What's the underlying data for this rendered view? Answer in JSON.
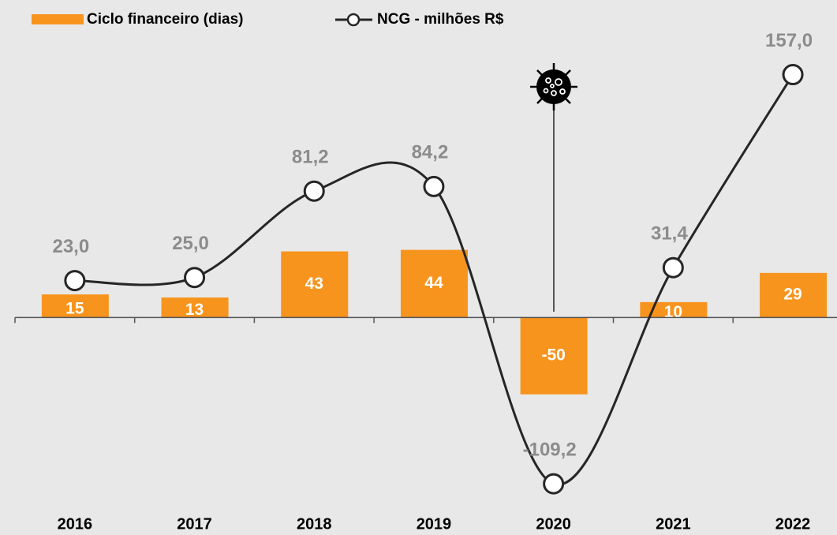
{
  "chart_data": {
    "type": "bar",
    "categories": [
      "2016",
      "2017",
      "2018",
      "2019",
      "2020",
      "2021",
      "2022"
    ],
    "series": [
      {
        "name": "Ciclo financeiro (dias)",
        "type": "bar",
        "color": "#f7941d",
        "values": [
          15,
          13,
          43,
          44,
          -50,
          10,
          29
        ]
      },
      {
        "name": "NCG - milhões R$",
        "type": "line",
        "axis": "y2",
        "color": "#262626",
        "values": [
          23.0,
          25.0,
          81.2,
          84.2,
          -109.2,
          31.4,
          157.0
        ],
        "value_labels": [
          "23,0",
          "25,0",
          "81,2",
          "84,2",
          "-109,2",
          "31,4",
          "157,0"
        ]
      }
    ],
    "ylim": [
      -122,
      186
    ],
    "y2lim": [
      -123,
      185
    ],
    "legend": "top-left"
  }
}
